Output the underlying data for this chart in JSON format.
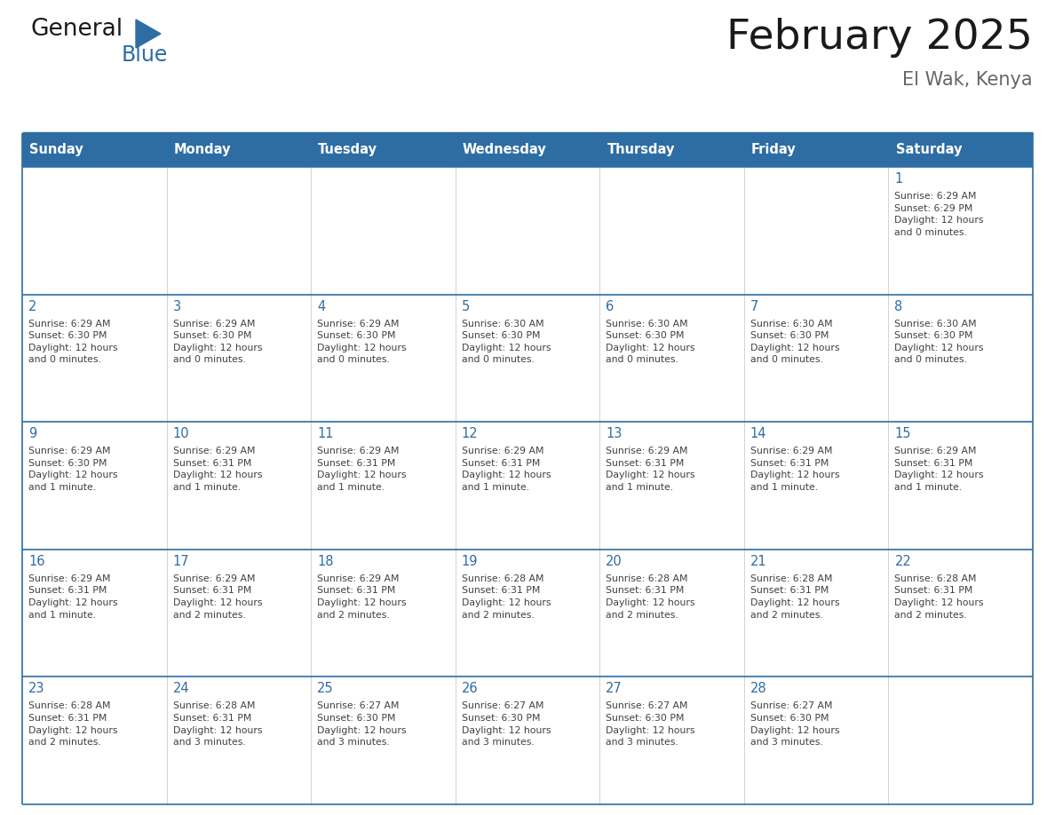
{
  "title": "February 2025",
  "subtitle": "El Wak, Kenya",
  "days_of_week": [
    "Sunday",
    "Monday",
    "Tuesday",
    "Wednesday",
    "Thursday",
    "Friday",
    "Saturday"
  ],
  "header_bg": "#2E6DA4",
  "header_text": "#FFFFFF",
  "cell_bg": "#FFFFFF",
  "border_color": "#2E6DA4",
  "row_border_color": "#4A90C4",
  "day_number_color": "#2E6DA4",
  "cell_text_color": "#404040",
  "title_color": "#1a1a1a",
  "subtitle_color": "#666666",
  "logo_general_color": "#1a1a1a",
  "logo_blue_color": "#2E6DA4",
  "weeks": [
    [
      {
        "day": null,
        "info": null
      },
      {
        "day": null,
        "info": null
      },
      {
        "day": null,
        "info": null
      },
      {
        "day": null,
        "info": null
      },
      {
        "day": null,
        "info": null
      },
      {
        "day": null,
        "info": null
      },
      {
        "day": 1,
        "info": "Sunrise: 6:29 AM\nSunset: 6:29 PM\nDaylight: 12 hours\nand 0 minutes."
      }
    ],
    [
      {
        "day": 2,
        "info": "Sunrise: 6:29 AM\nSunset: 6:30 PM\nDaylight: 12 hours\nand 0 minutes."
      },
      {
        "day": 3,
        "info": "Sunrise: 6:29 AM\nSunset: 6:30 PM\nDaylight: 12 hours\nand 0 minutes."
      },
      {
        "day": 4,
        "info": "Sunrise: 6:29 AM\nSunset: 6:30 PM\nDaylight: 12 hours\nand 0 minutes."
      },
      {
        "day": 5,
        "info": "Sunrise: 6:30 AM\nSunset: 6:30 PM\nDaylight: 12 hours\nand 0 minutes."
      },
      {
        "day": 6,
        "info": "Sunrise: 6:30 AM\nSunset: 6:30 PM\nDaylight: 12 hours\nand 0 minutes."
      },
      {
        "day": 7,
        "info": "Sunrise: 6:30 AM\nSunset: 6:30 PM\nDaylight: 12 hours\nand 0 minutes."
      },
      {
        "day": 8,
        "info": "Sunrise: 6:30 AM\nSunset: 6:30 PM\nDaylight: 12 hours\nand 0 minutes."
      }
    ],
    [
      {
        "day": 9,
        "info": "Sunrise: 6:29 AM\nSunset: 6:30 PM\nDaylight: 12 hours\nand 1 minute."
      },
      {
        "day": 10,
        "info": "Sunrise: 6:29 AM\nSunset: 6:31 PM\nDaylight: 12 hours\nand 1 minute."
      },
      {
        "day": 11,
        "info": "Sunrise: 6:29 AM\nSunset: 6:31 PM\nDaylight: 12 hours\nand 1 minute."
      },
      {
        "day": 12,
        "info": "Sunrise: 6:29 AM\nSunset: 6:31 PM\nDaylight: 12 hours\nand 1 minute."
      },
      {
        "day": 13,
        "info": "Sunrise: 6:29 AM\nSunset: 6:31 PM\nDaylight: 12 hours\nand 1 minute."
      },
      {
        "day": 14,
        "info": "Sunrise: 6:29 AM\nSunset: 6:31 PM\nDaylight: 12 hours\nand 1 minute."
      },
      {
        "day": 15,
        "info": "Sunrise: 6:29 AM\nSunset: 6:31 PM\nDaylight: 12 hours\nand 1 minute."
      }
    ],
    [
      {
        "day": 16,
        "info": "Sunrise: 6:29 AM\nSunset: 6:31 PM\nDaylight: 12 hours\nand 1 minute."
      },
      {
        "day": 17,
        "info": "Sunrise: 6:29 AM\nSunset: 6:31 PM\nDaylight: 12 hours\nand 2 minutes."
      },
      {
        "day": 18,
        "info": "Sunrise: 6:29 AM\nSunset: 6:31 PM\nDaylight: 12 hours\nand 2 minutes."
      },
      {
        "day": 19,
        "info": "Sunrise: 6:28 AM\nSunset: 6:31 PM\nDaylight: 12 hours\nand 2 minutes."
      },
      {
        "day": 20,
        "info": "Sunrise: 6:28 AM\nSunset: 6:31 PM\nDaylight: 12 hours\nand 2 minutes."
      },
      {
        "day": 21,
        "info": "Sunrise: 6:28 AM\nSunset: 6:31 PM\nDaylight: 12 hours\nand 2 minutes."
      },
      {
        "day": 22,
        "info": "Sunrise: 6:28 AM\nSunset: 6:31 PM\nDaylight: 12 hours\nand 2 minutes."
      }
    ],
    [
      {
        "day": 23,
        "info": "Sunrise: 6:28 AM\nSunset: 6:31 PM\nDaylight: 12 hours\nand 2 minutes."
      },
      {
        "day": 24,
        "info": "Sunrise: 6:28 AM\nSunset: 6:31 PM\nDaylight: 12 hours\nand 3 minutes."
      },
      {
        "day": 25,
        "info": "Sunrise: 6:27 AM\nSunset: 6:30 PM\nDaylight: 12 hours\nand 3 minutes."
      },
      {
        "day": 26,
        "info": "Sunrise: 6:27 AM\nSunset: 6:30 PM\nDaylight: 12 hours\nand 3 minutes."
      },
      {
        "day": 27,
        "info": "Sunrise: 6:27 AM\nSunset: 6:30 PM\nDaylight: 12 hours\nand 3 minutes."
      },
      {
        "day": 28,
        "info": "Sunrise: 6:27 AM\nSunset: 6:30 PM\nDaylight: 12 hours\nand 3 minutes."
      },
      {
        "day": null,
        "info": null
      }
    ]
  ],
  "figsize": [
    11.88,
    9.18
  ],
  "dpi": 100
}
